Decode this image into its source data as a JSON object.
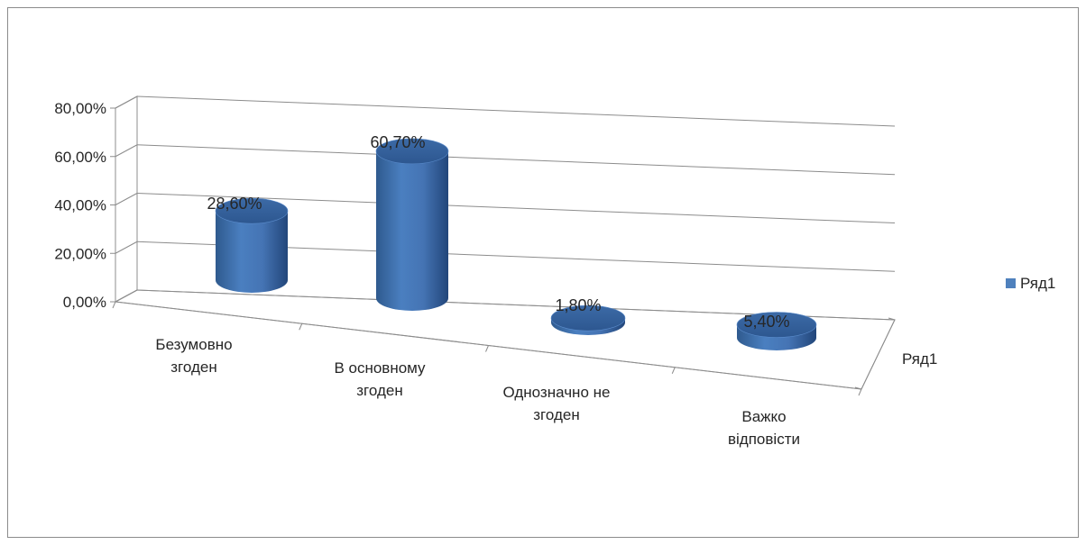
{
  "chart_data": {
    "type": "bar",
    "style": "3d-cylinder",
    "categories": [
      [
        "Безумовно",
        "згоден"
      ],
      [
        "В основному",
        "згоден"
      ],
      [
        "Однозначно не",
        "згоден"
      ],
      [
        "Важко",
        "відповісти"
      ]
    ],
    "series": [
      {
        "name": "Ряд1",
        "values": [
          28.6,
          60.7,
          1.8,
          5.4
        ],
        "value_labels": [
          "28,60%",
          "60,70%",
          "1,80%",
          "5,40%"
        ],
        "color": "#4f81bd"
      }
    ],
    "y_ticks": [
      "0,00%",
      "20,00%",
      "40,00%",
      "60,00%",
      "80,00%"
    ],
    "ylim": [
      0,
      80
    ],
    "depth_axis_label": "Ряд1",
    "grid": true,
    "legend": {
      "position": "right",
      "entries": [
        "Ряд1"
      ]
    }
  }
}
